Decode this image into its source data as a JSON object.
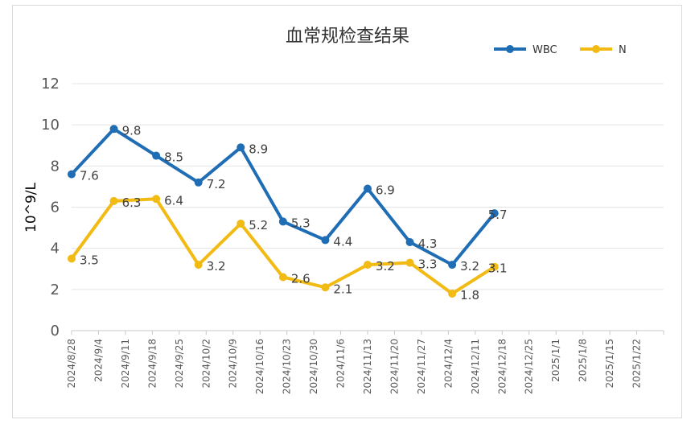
{
  "chart_data": {
    "type": "line",
    "title": "血常规检查结果",
    "ylabel": "10^9/L",
    "xlabel": "",
    "ylim": [
      0,
      12
    ],
    "yticks": [
      0,
      2,
      4,
      6,
      8,
      10,
      12
    ],
    "grid": true,
    "legend_position": "top-right",
    "categories": [
      "2024/8/28",
      "2024/9/4",
      "2024/9/11",
      "2024/9/18",
      "2024/9/25",
      "2024/10/2",
      "2024/10/9",
      "2024/10/16",
      "2024/10/23",
      "2024/10/30",
      "2024/11/6",
      "2024/11/13",
      "2024/11/20",
      "2024/11/27",
      "2024/12/4",
      "2024/12/11",
      "2024/12/18",
      "2024/12/25",
      "2025/1/1",
      "2025/1/8",
      "2025/1/15",
      "2025/1/22"
    ],
    "series": [
      {
        "name": "WBC",
        "color": "#1f6db5",
        "points": [
          {
            "x": "2024/8/28",
            "y": 7.6
          },
          {
            "x": "2024/9/8",
            "y": 9.8
          },
          {
            "x": "2024/9/19",
            "y": 8.5
          },
          {
            "x": "2024/9/30",
            "y": 7.2
          },
          {
            "x": "2024/10/11",
            "y": 8.9
          },
          {
            "x": "2024/10/22",
            "y": 5.3
          },
          {
            "x": "2024/11/2",
            "y": 4.4
          },
          {
            "x": "2024/11/13",
            "y": 6.9
          },
          {
            "x": "2024/11/24",
            "y": 4.3
          },
          {
            "x": "2024/12/5",
            "y": 3.2
          },
          {
            "x": "2024/12/16",
            "y": 5.7
          }
        ]
      },
      {
        "name": "N",
        "color": "#f2bb14",
        "points": [
          {
            "x": "2024/8/28",
            "y": 3.5
          },
          {
            "x": "2024/9/8",
            "y": 6.3
          },
          {
            "x": "2024/9/19",
            "y": 6.4
          },
          {
            "x": "2024/9/30",
            "y": 3.2
          },
          {
            "x": "2024/10/11",
            "y": 5.2
          },
          {
            "x": "2024/10/22",
            "y": 2.6
          },
          {
            "x": "2024/11/2",
            "y": 2.1
          },
          {
            "x": "2024/11/13",
            "y": 3.2
          },
          {
            "x": "2024/11/24",
            "y": 3.3
          },
          {
            "x": "2024/12/5",
            "y": 1.8
          },
          {
            "x": "2024/12/16",
            "y": 3.1
          }
        ]
      }
    ]
  }
}
